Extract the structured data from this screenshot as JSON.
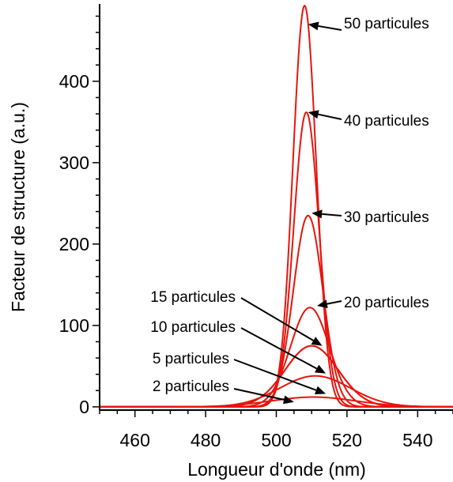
{
  "chart_data": {
    "type": "line",
    "title": "",
    "xlabel": "Longueur d'onde (nm)",
    "ylabel": "Facteur de structure (a.u.)",
    "xlim": [
      450,
      550
    ],
    "ylim": [
      -4,
      495
    ],
    "x_ticks": [
      460,
      480,
      500,
      520,
      540
    ],
    "y_ticks": [
      0,
      100,
      200,
      300,
      400
    ],
    "grid": false,
    "line_color": "#e8140c",
    "series": [
      {
        "name": "2 particules",
        "peak_x": 510.5,
        "peak_y": 12,
        "width": 12
      },
      {
        "name": "5 particules",
        "peak_x": 511.0,
        "peak_y": 38,
        "width": 10
      },
      {
        "name": "10 particules",
        "peak_x": 510.0,
        "peak_y": 75,
        "width": 7.5
      },
      {
        "name": "15 particules",
        "peak_x": 510.0,
        "peak_y": 75,
        "width": 7.5
      },
      {
        "name": "20 particules",
        "peak_x": 509.5,
        "peak_y": 122,
        "width": 5.5
      },
      {
        "name": "30 particules",
        "peak_x": 509.0,
        "peak_y": 235,
        "width": 4.2
      },
      {
        "name": "40 particules",
        "peak_x": 508.5,
        "peak_y": 362,
        "width": 3.6
      },
      {
        "name": "50 particules",
        "peak_x": 508.0,
        "peak_y": 493,
        "width": 3.3
      }
    ],
    "annotations": [
      {
        "text": "50 particules",
        "points_to": [
          509.0,
          470
        ]
      },
      {
        "text": "40 particules",
        "points_to": [
          509.0,
          362
        ]
      },
      {
        "text": "30 particules",
        "points_to": [
          510.0,
          238
        ]
      },
      {
        "text": "20 particules",
        "points_to": [
          511.5,
          124
        ]
      },
      {
        "text": "15 particules",
        "points_to": [
          513.0,
          75
        ]
      },
      {
        "text": "10 particules",
        "points_to": [
          514.0,
          41
        ]
      },
      {
        "text": "5 particules",
        "points_to": [
          514.0,
          16
        ]
      },
      {
        "text": "2 particules",
        "points_to": [
          505.0,
          6
        ]
      }
    ]
  }
}
